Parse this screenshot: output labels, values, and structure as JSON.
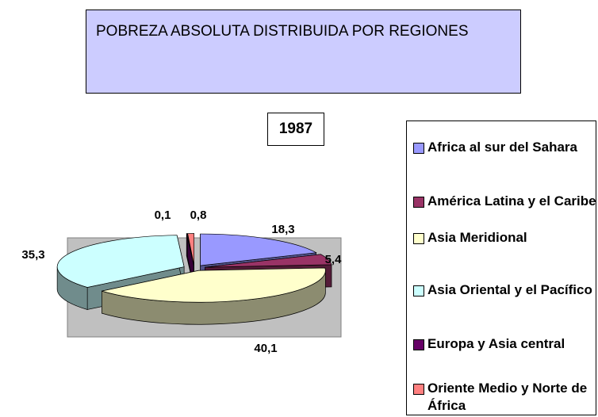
{
  "chart_data": {
    "type": "pie3d",
    "title": "POBREZA ABSOLUTA DISTRIBUIDA POR REGIONES",
    "subtitle": "1987",
    "categories": [
      "Africa al sur del Sahara",
      "América Latina y el Caribe",
      "Asia Meridional",
      "Asia Oriental y el Pacífico",
      "Europa y Asia central",
      "Oriente Medio y Norte de África"
    ],
    "values": [
      18.3,
      5.4,
      40.1,
      35.3,
      0.1,
      0.8
    ],
    "value_labels": [
      "18,3",
      "5,4",
      "40,1",
      "35,3",
      "0,1",
      "0,8"
    ],
    "colors": [
      "#9999ff",
      "#993366",
      "#ffffcc",
      "#ccffff",
      "#660066",
      "#ff8080"
    ]
  }
}
